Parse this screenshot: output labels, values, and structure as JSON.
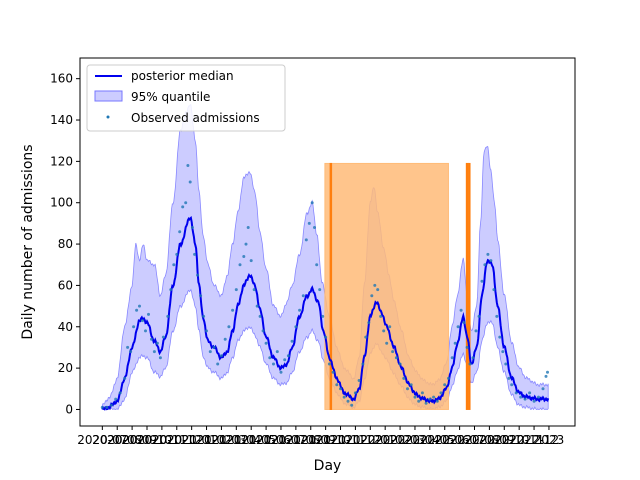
{
  "chart_data": {
    "type": "line",
    "xlabel": "Day",
    "ylabel": "Daily number of admissions",
    "ylim": [
      -8,
      170
    ],
    "yticks": [
      0,
      20,
      40,
      60,
      80,
      100,
      120,
      140,
      160
    ],
    "x_index_range": [
      0,
      599
    ],
    "x_tick_index_step": 20,
    "x_tick_labels": [
      "2020-07",
      "2020-08",
      "2020-09",
      "2020-10",
      "2020-11",
      "2020-12",
      "2021-01",
      "2021-02",
      "2021-03",
      "2021-04",
      "2021-05",
      "2021-06",
      "2021-07",
      "2021-08",
      "2021-09",
      "2021-10",
      "2021-11",
      "2021-12",
      "2022-01",
      "2022-02",
      "2022-03",
      "2022-04",
      "2022-05",
      "2022-06",
      "2022-07",
      "2022-08",
      "2022-09",
      "2022-10",
      "2022-11",
      "2022-12",
      "2023"
    ],
    "grid": false,
    "legend_position": "upper-left",
    "legend": [
      {
        "label": "posterior median",
        "kind": "line",
        "color": "#0000ee"
      },
      {
        "label": "95% quantile",
        "kind": "patch",
        "color": "#9999ff"
      },
      {
        "label": "Observed admissions",
        "kind": "marker",
        "color": "#1f77b4"
      }
    ],
    "median_keypoints": [
      [
        0,
        0
      ],
      [
        8,
        1
      ],
      [
        20,
        4
      ],
      [
        30,
        15
      ],
      [
        40,
        30
      ],
      [
        50,
        43
      ],
      [
        55,
        44
      ],
      [
        60,
        42
      ],
      [
        70,
        33
      ],
      [
        78,
        28
      ],
      [
        85,
        35
      ],
      [
        95,
        60
      ],
      [
        105,
        80
      ],
      [
        118,
        93
      ],
      [
        125,
        80
      ],
      [
        130,
        60
      ],
      [
        135,
        45
      ],
      [
        142,
        33
      ],
      [
        150,
        30
      ],
      [
        160,
        25
      ],
      [
        168,
        28
      ],
      [
        175,
        38
      ],
      [
        182,
        50
      ],
      [
        190,
        60
      ],
      [
        198,
        65
      ],
      [
        205,
        60
      ],
      [
        212,
        48
      ],
      [
        220,
        35
      ],
      [
        230,
        25
      ],
      [
        240,
        20
      ],
      [
        248,
        22
      ],
      [
        255,
        30
      ],
      [
        265,
        45
      ],
      [
        275,
        55
      ],
      [
        282,
        58
      ],
      [
        290,
        52
      ],
      [
        297,
        38
      ],
      [
        305,
        25
      ],
      [
        315,
        15
      ],
      [
        325,
        8
      ],
      [
        338,
        5
      ],
      [
        345,
        10
      ],
      [
        352,
        25
      ],
      [
        360,
        45
      ],
      [
        368,
        52
      ],
      [
        375,
        47
      ],
      [
        382,
        40
      ],
      [
        392,
        30
      ],
      [
        402,
        20
      ],
      [
        412,
        12
      ],
      [
        422,
        7
      ],
      [
        432,
        5
      ],
      [
        442,
        4
      ],
      [
        452,
        5
      ],
      [
        462,
        10
      ],
      [
        470,
        20
      ],
      [
        477,
        32
      ],
      [
        485,
        45
      ],
      [
        490,
        35
      ],
      [
        496,
        22
      ],
      [
        503,
        30
      ],
      [
        510,
        55
      ],
      [
        517,
        72
      ],
      [
        524,
        70
      ],
      [
        531,
        50
      ],
      [
        540,
        30
      ],
      [
        550,
        15
      ],
      [
        560,
        8
      ],
      [
        570,
        6
      ],
      [
        585,
        5
      ],
      [
        599,
        5
      ]
    ],
    "upper_keypoints": [
      [
        0,
        2
      ],
      [
        10,
        6
      ],
      [
        20,
        15
      ],
      [
        30,
        40
      ],
      [
        40,
        60
      ],
      [
        45,
        80
      ],
      [
        50,
        72
      ],
      [
        55,
        80
      ],
      [
        60,
        72
      ],
      [
        70,
        70
      ],
      [
        78,
        55
      ],
      [
        85,
        65
      ],
      [
        95,
        100
      ],
      [
        105,
        135
      ],
      [
        112,
        143
      ],
      [
        118,
        148
      ],
      [
        125,
        130
      ],
      [
        130,
        105
      ],
      [
        135,
        85
      ],
      [
        142,
        70
      ],
      [
        150,
        60
      ],
      [
        160,
        55
      ],
      [
        168,
        65
      ],
      [
        175,
        80
      ],
      [
        182,
        95
      ],
      [
        190,
        112
      ],
      [
        198,
        115
      ],
      [
        205,
        105
      ],
      [
        212,
        85
      ],
      [
        220,
        68
      ],
      [
        230,
        50
      ],
      [
        240,
        45
      ],
      [
        248,
        52
      ],
      [
        255,
        60
      ],
      [
        265,
        75
      ],
      [
        275,
        95
      ],
      [
        282,
        100
      ],
      [
        288,
        85
      ],
      [
        295,
        62
      ],
      [
        305,
        45
      ],
      [
        315,
        30
      ],
      [
        325,
        20
      ],
      [
        338,
        15
      ],
      [
        345,
        25
      ],
      [
        352,
        60
      ],
      [
        360,
        100
      ],
      [
        365,
        108
      ],
      [
        370,
        95
      ],
      [
        378,
        78
      ],
      [
        385,
        65
      ],
      [
        392,
        52
      ],
      [
        402,
        38
      ],
      [
        412,
        25
      ],
      [
        422,
        18
      ],
      [
        432,
        14
      ],
      [
        442,
        12
      ],
      [
        452,
        14
      ],
      [
        462,
        22
      ],
      [
        470,
        40
      ],
      [
        477,
        55
      ],
      [
        485,
        73
      ],
      [
        490,
        55
      ],
      [
        496,
        38
      ],
      [
        503,
        50
      ],
      [
        508,
        90
      ],
      [
        513,
        125
      ],
      [
        517,
        128
      ],
      [
        522,
        115
      ],
      [
        527,
        100
      ],
      [
        531,
        82
      ],
      [
        540,
        55
      ],
      [
        550,
        32
      ],
      [
        560,
        20
      ],
      [
        570,
        15
      ],
      [
        585,
        12
      ],
      [
        599,
        12
      ]
    ],
    "lower_keypoints": [
      [
        0,
        0
      ],
      [
        10,
        0
      ],
      [
        20,
        0
      ],
      [
        30,
        5
      ],
      [
        40,
        18
      ],
      [
        50,
        25
      ],
      [
        55,
        26
      ],
      [
        60,
        25
      ],
      [
        70,
        18
      ],
      [
        78,
        16
      ],
      [
        85,
        20
      ],
      [
        95,
        38
      ],
      [
        105,
        50
      ],
      [
        118,
        58
      ],
      [
        125,
        50
      ],
      [
        130,
        38
      ],
      [
        135,
        26
      ],
      [
        142,
        20
      ],
      [
        150,
        18
      ],
      [
        160,
        15
      ],
      [
        168,
        18
      ],
      [
        175,
        25
      ],
      [
        182,
        33
      ],
      [
        190,
        38
      ],
      [
        198,
        40
      ],
      [
        205,
        36
      ],
      [
        212,
        30
      ],
      [
        220,
        22
      ],
      [
        230,
        15
      ],
      [
        240,
        12
      ],
      [
        248,
        13
      ],
      [
        255,
        18
      ],
      [
        265,
        28
      ],
      [
        275,
        35
      ],
      [
        282,
        38
      ],
      [
        290,
        33
      ],
      [
        297,
        24
      ],
      [
        305,
        15
      ],
      [
        315,
        8
      ],
      [
        325,
        3
      ],
      [
        338,
        1
      ],
      [
        345,
        4
      ],
      [
        352,
        14
      ],
      [
        360,
        27
      ],
      [
        368,
        32
      ],
      [
        375,
        28
      ],
      [
        382,
        24
      ],
      [
        392,
        17
      ],
      [
        402,
        11
      ],
      [
        412,
        5
      ],
      [
        422,
        2
      ],
      [
        432,
        1
      ],
      [
        442,
        0
      ],
      [
        452,
        1
      ],
      [
        462,
        4
      ],
      [
        470,
        11
      ],
      [
        477,
        19
      ],
      [
        485,
        27
      ],
      [
        490,
        21
      ],
      [
        496,
        13
      ],
      [
        503,
        18
      ],
      [
        510,
        33
      ],
      [
        517,
        42
      ],
      [
        524,
        42
      ],
      [
        531,
        30
      ],
      [
        540,
        18
      ],
      [
        550,
        7
      ],
      [
        560,
        2
      ],
      [
        570,
        1
      ],
      [
        585,
        0
      ],
      [
        599,
        0
      ]
    ],
    "observed_points": [
      [
        0,
        1
      ],
      [
        6,
        1
      ],
      [
        12,
        2
      ],
      [
        18,
        5
      ],
      [
        24,
        8
      ],
      [
        30,
        15
      ],
      [
        34,
        30
      ],
      [
        38,
        28
      ],
      [
        42,
        40
      ],
      [
        46,
        48
      ],
      [
        50,
        50
      ],
      [
        54,
        43
      ],
      [
        58,
        38
      ],
      [
        62,
        46
      ],
      [
        66,
        34
      ],
      [
        70,
        28
      ],
      [
        74,
        32
      ],
      [
        78,
        25
      ],
      [
        82,
        35
      ],
      [
        88,
        45
      ],
      [
        92,
        58
      ],
      [
        96,
        70
      ],
      [
        100,
        75
      ],
      [
        104,
        86
      ],
      [
        108,
        98
      ],
      [
        112,
        100
      ],
      [
        115,
        118
      ],
      [
        118,
        110
      ],
      [
        121,
        88
      ],
      [
        124,
        75
      ],
      [
        128,
        65
      ],
      [
        132,
        55
      ],
      [
        136,
        45
      ],
      [
        140,
        38
      ],
      [
        145,
        28
      ],
      [
        150,
        30
      ],
      [
        155,
        22
      ],
      [
        160,
        26
      ],
      [
        165,
        34
      ],
      [
        170,
        40
      ],
      [
        175,
        48
      ],
      [
        180,
        58
      ],
      [
        185,
        70
      ],
      [
        190,
        74
      ],
      [
        193,
        80
      ],
      [
        196,
        88
      ],
      [
        200,
        72
      ],
      [
        204,
        58
      ],
      [
        208,
        50
      ],
      [
        212,
        45
      ],
      [
        216,
        38
      ],
      [
        220,
        32
      ],
      [
        225,
        25
      ],
      [
        230,
        22
      ],
      [
        235,
        28
      ],
      [
        240,
        18
      ],
      [
        245,
        24
      ],
      [
        250,
        26
      ],
      [
        255,
        33
      ],
      [
        260,
        40
      ],
      [
        265,
        48
      ],
      [
        270,
        55
      ],
      [
        274,
        82
      ],
      [
        278,
        90
      ],
      [
        282,
        100
      ],
      [
        285,
        88
      ],
      [
        288,
        70
      ],
      [
        292,
        58
      ],
      [
        296,
        45
      ],
      [
        300,
        35
      ],
      [
        305,
        22
      ],
      [
        310,
        18
      ],
      [
        315,
        12
      ],
      [
        320,
        10
      ],
      [
        325,
        6
      ],
      [
        330,
        4
      ],
      [
        335,
        2
      ],
      [
        340,
        8
      ],
      [
        345,
        14
      ],
      [
        350,
        22
      ],
      [
        354,
        35
      ],
      [
        358,
        42
      ],
      [
        362,
        55
      ],
      [
        366,
        60
      ],
      [
        370,
        58
      ],
      [
        374,
        45
      ],
      [
        378,
        38
      ],
      [
        382,
        32
      ],
      [
        386,
        40
      ],
      [
        390,
        28
      ],
      [
        395,
        25
      ],
      [
        400,
        22
      ],
      [
        405,
        15
      ],
      [
        410,
        10
      ],
      [
        415,
        12
      ],
      [
        420,
        6
      ],
      [
        425,
        4
      ],
      [
        430,
        8
      ],
      [
        435,
        3
      ],
      [
        440,
        5
      ],
      [
        445,
        6
      ],
      [
        450,
        4
      ],
      [
        455,
        8
      ],
      [
        460,
        12
      ],
      [
        465,
        15
      ],
      [
        470,
        25
      ],
      [
        474,
        32
      ],
      [
        478,
        40
      ],
      [
        482,
        48
      ],
      [
        486,
        42
      ],
      [
        490,
        30
      ],
      [
        494,
        22
      ],
      [
        498,
        25
      ],
      [
        502,
        38
      ],
      [
        506,
        45
      ],
      [
        510,
        62
      ],
      [
        514,
        70
      ],
      [
        518,
        75
      ],
      [
        522,
        72
      ],
      [
        526,
        58
      ],
      [
        530,
        45
      ],
      [
        534,
        35
      ],
      [
        538,
        28
      ],
      [
        542,
        22
      ],
      [
        546,
        15
      ],
      [
        550,
        12
      ],
      [
        556,
        8
      ],
      [
        562,
        6
      ],
      [
        568,
        5
      ],
      [
        574,
        8
      ],
      [
        580,
        4
      ],
      [
        586,
        6
      ],
      [
        592,
        10
      ],
      [
        596,
        16
      ],
      [
        598,
        18
      ]
    ],
    "highlight_regions": [
      {
        "x0": 299,
        "x1": 465,
        "ymin": 0,
        "ymax": 119,
        "color": "#ffbb78"
      },
      {
        "x0": 306,
        "x1": 308,
        "ymin": 0,
        "ymax": 119,
        "color": "#ff7f0e"
      },
      {
        "x0": 492,
        "x1": 494,
        "ymin": 0,
        "ymax": 119,
        "color": "#ff7f0e"
      },
      {
        "x0": 489,
        "x1": 491,
        "ymin": 0,
        "ymax": 119,
        "color": "#ff7f0e"
      }
    ]
  }
}
